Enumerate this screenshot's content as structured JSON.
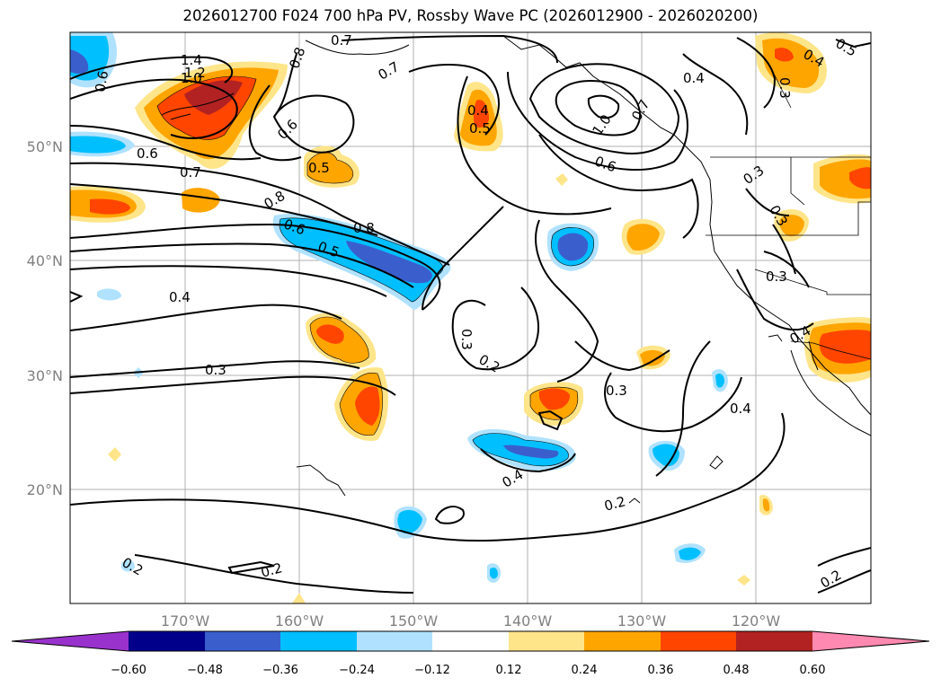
{
  "title": "2026012700 F024 700 hPa PV, Rossby Wave PC (2026012900 - 2026020200)",
  "map": {
    "lat_ticks": [
      "50°N",
      "40°N",
      "30°N",
      "20°N"
    ],
    "lon_ticks": [
      "170°W",
      "160°W",
      "150°W",
      "140°W",
      "130°W",
      "120°W"
    ],
    "extent": {
      "lon_min": -180,
      "lon_max": -110,
      "lat_min": 10,
      "lat_max": 60
    },
    "contour_labels": [
      "1.4",
      "1.2",
      "1.0",
      "0.6",
      "0.8",
      "0.7",
      "0.7",
      "0.6",
      "0.5",
      "0.7",
      "0.6",
      "0.8",
      "0.4",
      "0.5",
      "1.0",
      "0.7",
      "0.4",
      "0.6",
      "0.6",
      "0.5",
      "0.8",
      "0.3",
      "0.3",
      "0.4",
      "0.3",
      "0.4",
      "0.4",
      "0.3",
      "0.3",
      "0.2",
      "0.3",
      "0.4",
      "0.4",
      "0.2",
      "0.2",
      "0.2",
      "0.2",
      "0.5",
      "0.3"
    ]
  },
  "colorbar": {
    "ticks": [
      "−0.60",
      "−0.48",
      "−0.36",
      "−0.24",
      "−0.12",
      "0.12",
      "0.24",
      "0.36",
      "0.48",
      "0.60"
    ],
    "colors": [
      "#9932cc",
      "#00008b",
      "#3a5fcd",
      "#00bfff",
      "#b0e2ff",
      "#ffffff",
      "#ffe58a",
      "#ffa500",
      "#ff4500",
      "#b22222",
      "#ff89b0"
    ]
  }
}
